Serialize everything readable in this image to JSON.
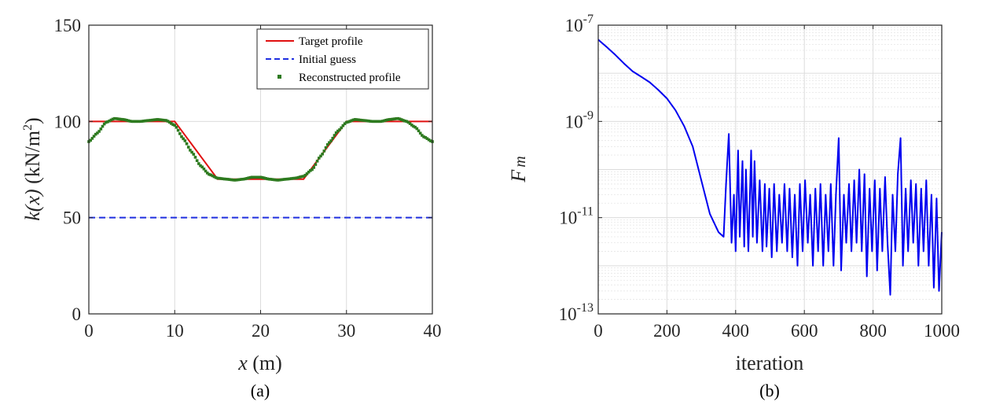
{
  "chart_data": [
    {
      "type": "line",
      "panel_label": "(a)",
      "xlabel_italic": "x",
      "xlabel_unit": " (m)",
      "ylabel_func": "k(x)",
      "ylabel_unit": "(kN/m",
      "ylabel_sup": "2",
      "ylabel_close": ")",
      "xlim": [
        0,
        40
      ],
      "ylim": [
        0,
        150
      ],
      "xticks": [
        0,
        10,
        20,
        30,
        40
      ],
      "yticks": [
        0,
        50,
        100,
        150
      ],
      "xtick_labels": [
        "0",
        "10",
        "20",
        "30",
        "40"
      ],
      "ytick_labels": [
        "0",
        "50",
        "100",
        "150"
      ],
      "grid": true,
      "legend_position": "top-right",
      "series": [
        {
          "name": "Target profile",
          "style": "solid",
          "color": "#e01010",
          "x": [
            0,
            10,
            15,
            25,
            30,
            40
          ],
          "y": [
            100,
            100,
            70,
            70,
            100,
            100
          ]
        },
        {
          "name": "Initial guess",
          "style": "dashed",
          "color": "#1f2fe0",
          "x": [
            0,
            40
          ],
          "y": [
            50,
            50
          ]
        },
        {
          "name": "Reconstructed profile",
          "style": "markers",
          "color": "#2d7a1f",
          "x": [
            0,
            1,
            2,
            3,
            4,
            5,
            6,
            7,
            8,
            9,
            10,
            11,
            12,
            13,
            14,
            15,
            16,
            17,
            18,
            19,
            20,
            21,
            22,
            23,
            24,
            25,
            26,
            27,
            28,
            29,
            30,
            31,
            32,
            33,
            34,
            35,
            36,
            37,
            38,
            39,
            40
          ],
          "y": [
            89.5,
            94,
            99.5,
            101.5,
            101,
            100,
            100,
            100.5,
            101,
            100.5,
            98,
            91,
            84,
            77,
            72.5,
            70.5,
            70,
            69.5,
            70,
            71,
            71,
            70,
            69.5,
            70,
            70.5,
            71.5,
            75,
            82,
            89,
            95,
            99.5,
            101,
            100.5,
            100,
            100,
            101,
            101.5,
            100,
            97,
            92,
            89.5
          ]
        }
      ]
    },
    {
      "type": "line",
      "panel_label": "(b)",
      "xlabel": "iteration",
      "ylabel_main": "F",
      "ylabel_sub": "m",
      "yscale": "log",
      "xlim": [
        0,
        1000
      ],
      "ylim": [
        1e-13,
        1e-07
      ],
      "xticks": [
        0,
        200,
        400,
        600,
        800,
        1000
      ],
      "xtick_labels": [
        "0",
        "200",
        "400",
        "600",
        "800",
        "1000"
      ],
      "ytick_base": "10",
      "ytick_exps": [
        "-13",
        "-11",
        "-9",
        "-7"
      ],
      "yticks": [
        1e-13,
        1e-11,
        1e-09,
        1e-07
      ],
      "grid": true,
      "series": [
        {
          "color": "#0000f0",
          "x": [
            0,
            25,
            50,
            75,
            100,
            125,
            150,
            175,
            200,
            225,
            250,
            275,
            300,
            325,
            350,
            365,
            372,
            380,
            388,
            395,
            400,
            407,
            412,
            420,
            425,
            430,
            437,
            445,
            450,
            455,
            462,
            470,
            478,
            485,
            490,
            498,
            505,
            512,
            520,
            527,
            535,
            542,
            550,
            557,
            565,
            572,
            580,
            587,
            595,
            602,
            610,
            617,
            625,
            632,
            640,
            647,
            655,
            662,
            670,
            677,
            685,
            692,
            700,
            707,
            715,
            722,
            730,
            737,
            745,
            752,
            760,
            767,
            775,
            782,
            790,
            797,
            805,
            812,
            820,
            827,
            835,
            842,
            850,
            857,
            865,
            872,
            880,
            887,
            895,
            902,
            910,
            917,
            925,
            932,
            940,
            947,
            955,
            962,
            970,
            977,
            985,
            992,
            1000
          ],
          "y": [
            5e-08,
            3.5e-08,
            2.4e-08,
            1.6e-08,
            1.1e-08,
            8.5e-09,
            6.5e-09,
            4.5e-09,
            3e-09,
            1.7e-09,
            8e-10,
            3e-10,
            6e-11,
            1.2e-11,
            5e-12,
            4e-12,
            5e-11,
            5.5e-10,
            3e-12,
            3e-11,
            2e-12,
            2.5e-10,
            4e-12,
            1.5e-10,
            2.5e-12,
            1e-10,
            2e-12,
            2.5e-10,
            4e-12,
            1.5e-10,
            3e-12,
            6e-11,
            2e-12,
            5e-11,
            2.5e-12,
            4e-11,
            1.5e-12,
            5e-11,
            2e-12,
            3e-11,
            3e-12,
            5e-11,
            2e-12,
            4e-11,
            1.5e-12,
            3e-11,
            1e-12,
            5e-11,
            2e-12,
            6e-11,
            3e-12,
            3e-11,
            1e-12,
            4e-11,
            2e-12,
            5e-11,
            1e-12,
            3e-11,
            2e-12,
            5e-11,
            1e-12,
            3e-11,
            4.5e-10,
            8e-13,
            3e-11,
            3e-12,
            5e-11,
            2e-12,
            6e-11,
            3e-12,
            1e-10,
            2e-12,
            8e-11,
            6e-13,
            4e-11,
            2e-12,
            6e-11,
            8e-13,
            4e-11,
            2e-12,
            7e-11,
            3e-12,
            2.5e-13,
            3e-11,
            2e-12,
            8e-11,
            4.5e-10,
            1e-12,
            4e-11,
            2e-12,
            6e-11,
            3e-12,
            5e-11,
            1e-12,
            4e-11,
            2e-12,
            6e-11,
            1e-12,
            3e-11,
            3.5e-13,
            2.5e-11,
            3e-13,
            5e-12
          ]
        }
      ]
    }
  ]
}
